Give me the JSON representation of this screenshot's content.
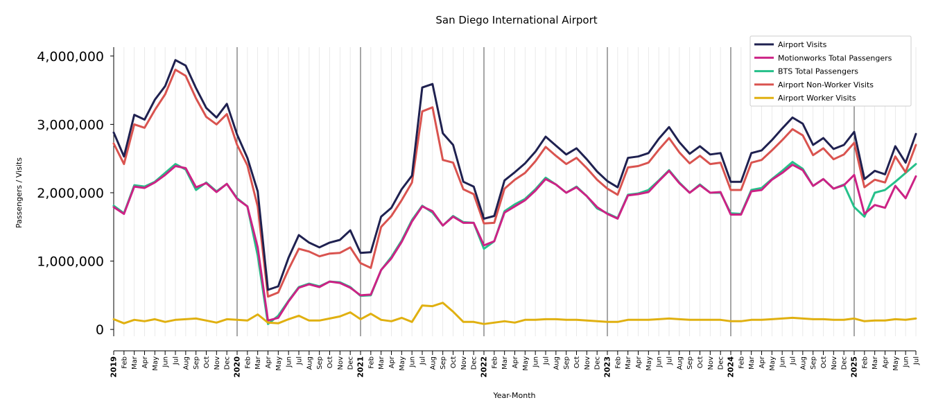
{
  "chart_data": {
    "type": "line",
    "title": "San Diego International Airport",
    "xlabel": "Year-Month",
    "ylabel": "Passengers / Visits",
    "ylim": [
      -100000,
      4130000
    ],
    "yticks": [
      0,
      1000000,
      2000000,
      3000000,
      4000000
    ],
    "ytick_labels": [
      "0",
      "1,000,000",
      "2,000,000",
      "3,000,000",
      "4,000,000"
    ],
    "months": [
      "Jan",
      "Feb",
      "Mar",
      "Apr",
      "May",
      "Jun",
      "Jul",
      "Aug",
      "Sep",
      "Oct",
      "Nov",
      "Dec"
    ],
    "years": [
      "2019",
      "2020",
      "2021",
      "2022",
      "2023",
      "2024",
      "2025"
    ],
    "x_start": "2019-01",
    "x_end": "2025-07",
    "grid": "vertical",
    "legend_position": "top-right",
    "series": [
      {
        "name": "Airport Visits",
        "color": "#1f2150",
        "values": [
          2880000,
          2530000,
          3140000,
          3070000,
          3360000,
          3560000,
          3940000,
          3860000,
          3530000,
          3240000,
          3100000,
          3300000,
          2850000,
          2510000,
          2020000,
          580000,
          630000,
          1050000,
          1380000,
          1270000,
          1200000,
          1270000,
          1310000,
          1450000,
          1120000,
          1130000,
          1650000,
          1780000,
          2050000,
          2250000,
          3540000,
          3590000,
          2870000,
          2700000,
          2160000,
          2090000,
          1620000,
          1660000,
          2180000,
          2300000,
          2430000,
          2600000,
          2820000,
          2690000,
          2560000,
          2650000,
          2490000,
          2310000,
          2170000,
          2080000,
          2510000,
          2530000,
          2580000,
          2790000,
          2960000,
          2740000,
          2570000,
          2680000,
          2560000,
          2580000,
          2160000,
          2160000,
          2580000,
          2620000,
          2770000,
          2940000,
          3100000,
          3010000,
          2700000,
          2800000,
          2640000,
          2700000,
          2890000,
          2200000,
          2320000,
          2270000,
          2680000,
          2440000,
          2860000
        ]
      },
      {
        "name": "Motionworks Total Passengers",
        "color": "#cc2285",
        "values": [
          1790000,
          1690000,
          2090000,
          2070000,
          2150000,
          2260000,
          2390000,
          2360000,
          2080000,
          2140000,
          2010000,
          2130000,
          1910000,
          1800000,
          1200000,
          130000,
          170000,
          410000,
          610000,
          660000,
          620000,
          700000,
          680000,
          610000,
          500000,
          510000,
          870000,
          1040000,
          1280000,
          1580000,
          1800000,
          1730000,
          1520000,
          1650000,
          1560000,
          1560000,
          1230000,
          1290000,
          1710000,
          1800000,
          1890000,
          2030000,
          2200000,
          2120000,
          2000000,
          2080000,
          1950000,
          1790000,
          1690000,
          1620000,
          1960000,
          1980000,
          2010000,
          2170000,
          2320000,
          2140000,
          2000000,
          2110000,
          2000000,
          2010000,
          1680000,
          1680000,
          2020000,
          2040000,
          2190000,
          2290000,
          2410000,
          2330000,
          2100000,
          2200000,
          2060000,
          2110000,
          2260000,
          1690000,
          1820000,
          1780000,
          2100000,
          1920000,
          2240000
        ]
      },
      {
        "name": "BTS Total Passengers",
        "color": "#25c08a",
        "values": [
          1810000,
          1700000,
          2110000,
          2090000,
          2160000,
          2290000,
          2420000,
          2340000,
          2040000,
          2150000,
          2020000,
          2130000,
          1920000,
          1800000,
          1080000,
          80000,
          200000,
          420000,
          620000,
          670000,
          630000,
          700000,
          690000,
          620000,
          490000,
          500000,
          870000,
          1060000,
          1300000,
          1600000,
          1810000,
          1710000,
          1520000,
          1660000,
          1570000,
          1560000,
          1180000,
          1290000,
          1730000,
          1830000,
          1910000,
          2050000,
          2220000,
          2120000,
          2000000,
          2090000,
          1950000,
          1770000,
          1700000,
          1630000,
          1970000,
          1990000,
          2040000,
          2180000,
          2330000,
          2150000,
          2000000,
          2120000,
          2000000,
          2000000,
          1700000,
          1690000,
          2040000,
          2070000,
          2200000,
          2320000,
          2450000,
          2350000,
          2100000,
          2200000,
          2060000,
          2120000,
          1790000,
          1650000,
          2000000,
          2040000,
          2160000,
          2290000,
          2420000
        ]
      },
      {
        "name": "Airport Non-Worker Visits",
        "color": "#d9534f",
        "values": [
          2720000,
          2420000,
          3000000,
          2950000,
          3210000,
          3440000,
          3800000,
          3710000,
          3380000,
          3110000,
          3000000,
          3150000,
          2700000,
          2400000,
          1800000,
          480000,
          540000,
          880000,
          1180000,
          1140000,
          1070000,
          1110000,
          1120000,
          1200000,
          970000,
          900000,
          1500000,
          1660000,
          1890000,
          2150000,
          3190000,
          3250000,
          2480000,
          2440000,
          2050000,
          1980000,
          1550000,
          1560000,
          2060000,
          2190000,
          2290000,
          2460000,
          2670000,
          2540000,
          2420000,
          2510000,
          2360000,
          2190000,
          2060000,
          1970000,
          2370000,
          2390000,
          2440000,
          2630000,
          2800000,
          2590000,
          2430000,
          2540000,
          2420000,
          2440000,
          2040000,
          2040000,
          2440000,
          2480000,
          2620000,
          2770000,
          2930000,
          2840000,
          2550000,
          2650000,
          2490000,
          2560000,
          2730000,
          2080000,
          2190000,
          2150000,
          2530000,
          2300000,
          2700000
        ]
      },
      {
        "name": "Airport Worker Visits",
        "color": "#e0b010",
        "values": [
          150000,
          90000,
          140000,
          120000,
          150000,
          110000,
          140000,
          150000,
          160000,
          130000,
          100000,
          150000,
          140000,
          130000,
          220000,
          100000,
          90000,
          150000,
          200000,
          130000,
          130000,
          160000,
          190000,
          250000,
          150000,
          230000,
          140000,
          120000,
          170000,
          110000,
          350000,
          340000,
          390000,
          260000,
          110000,
          110000,
          80000,
          100000,
          120000,
          100000,
          140000,
          140000,
          150000,
          150000,
          140000,
          140000,
          130000,
          120000,
          110000,
          110000,
          140000,
          140000,
          140000,
          150000,
          160000,
          150000,
          140000,
          140000,
          140000,
          140000,
          120000,
          120000,
          140000,
          140000,
          150000,
          160000,
          170000,
          160000,
          150000,
          150000,
          140000,
          140000,
          160000,
          120000,
          130000,
          130000,
          150000,
          140000,
          160000
        ]
      }
    ]
  }
}
